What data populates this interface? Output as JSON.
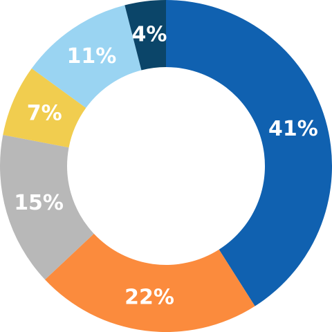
{
  "chart_data": {
    "type": "pie",
    "values": [
      41,
      22,
      15,
      7,
      11,
      4
    ],
    "value_labels": [
      "41%",
      "22%",
      "15%",
      "7%",
      "11%",
      "4%"
    ],
    "colors": [
      "#1061b0",
      "#fb8b3d",
      "#b8b8b8",
      "#f1cd4f",
      "#9ad4f2",
      "#0b4569"
    ],
    "label_colors": [
      "#ffffff",
      "#ffffff",
      "#ffffff",
      "#ffffff",
      "#ffffff",
      "#ffffff"
    ]
  }
}
